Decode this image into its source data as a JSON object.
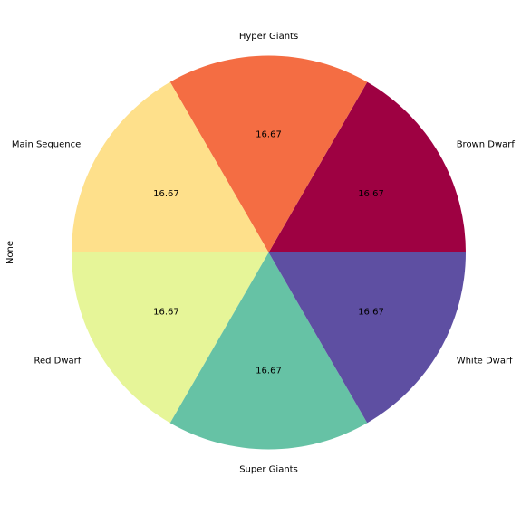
{
  "chart_data": {
    "type": "pie",
    "ylabel": "None",
    "labels": [
      "Brown Dwarf",
      "Hyper Giants",
      "Main Sequence",
      "Red Dwarf",
      "Super Giants",
      "White Dwarf"
    ],
    "values": [
      16.67,
      16.67,
      16.67,
      16.67,
      16.67,
      16.67
    ],
    "value_labels": [
      "16.67",
      "16.67",
      "16.67",
      "16.67",
      "16.67",
      "16.67"
    ],
    "colors": [
      "#9e0142",
      "#f46d43",
      "#fee08b",
      "#e6f598",
      "#66c2a5",
      "#5e4fa2"
    ],
    "start_angle_deg": 0,
    "direction": "counterclockwise"
  }
}
